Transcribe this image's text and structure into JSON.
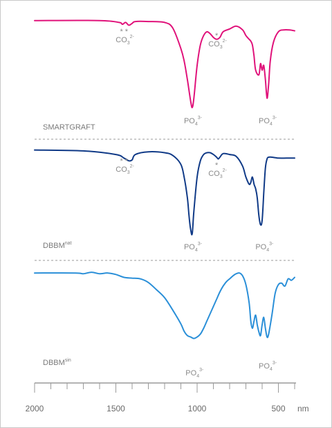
{
  "chart_data": {
    "type": "line",
    "x_unit": "nm",
    "xlim": [
      2000,
      400
    ],
    "x_ticks": [
      "2000",
      "1500",
      "1000",
      "500"
    ],
    "x_unit_label": "nm",
    "grid": false,
    "series": [
      {
        "name": "SMARTGRAFT",
        "color": "#e0127a",
        "x": [
          2000,
          1600,
          1480,
          1460,
          1440,
          1420,
          1400,
          1380,
          1300,
          1200,
          1150,
          1100,
          1080,
          1060,
          1040,
          1030,
          1020,
          1000,
          980,
          960,
          940,
          920,
          900,
          880,
          860,
          840,
          800,
          760,
          720,
          700,
          680,
          670,
          660,
          650,
          640,
          620,
          610,
          600,
          590,
          580,
          570,
          560,
          550,
          530,
          500,
          470,
          430,
          400
        ],
        "y": [
          0.98,
          0.98,
          0.96,
          0.94,
          0.96,
          0.93,
          0.95,
          0.97,
          0.97,
          0.96,
          0.9,
          0.68,
          0.55,
          0.35,
          0.12,
          0.05,
          0.15,
          0.5,
          0.72,
          0.82,
          0.86,
          0.84,
          0.8,
          0.78,
          0.8,
          0.86,
          0.89,
          0.92,
          0.88,
          0.82,
          0.78,
          0.76,
          0.72,
          0.6,
          0.45,
          0.4,
          0.52,
          0.45,
          0.5,
          0.35,
          0.15,
          0.3,
          0.55,
          0.75,
          0.86,
          0.88,
          0.88,
          0.87
        ]
      },
      {
        "name": "DBBM",
        "name_sup": "nat",
        "color": "#103a87",
        "x": [
          2000,
          1700,
          1500,
          1450,
          1420,
          1400,
          1380,
          1300,
          1200,
          1150,
          1100,
          1080,
          1060,
          1050,
          1040,
          1030,
          1020,
          1000,
          980,
          960,
          940,
          920,
          900,
          880,
          870,
          860,
          840,
          800,
          760,
          720,
          700,
          680,
          670,
          660,
          650,
          640,
          630,
          620,
          610,
          600,
          590,
          580,
          570,
          560,
          540,
          500,
          450,
          400
        ],
        "y": [
          0.98,
          0.97,
          0.93,
          0.89,
          0.86,
          0.87,
          0.93,
          0.96,
          0.95,
          0.92,
          0.82,
          0.68,
          0.45,
          0.25,
          0.1,
          0.05,
          0.3,
          0.68,
          0.86,
          0.93,
          0.95,
          0.95,
          0.93,
          0.9,
          0.88,
          0.9,
          0.94,
          0.93,
          0.91,
          0.8,
          0.68,
          0.6,
          0.62,
          0.68,
          0.6,
          0.55,
          0.45,
          0.25,
          0.15,
          0.2,
          0.5,
          0.78,
          0.88,
          0.9,
          0.9,
          0.89,
          0.89,
          0.89
        ]
      },
      {
        "name": "DBBM",
        "name_sup": "sin",
        "color": "#2a8fd8",
        "x": [
          2000,
          1750,
          1700,
          1650,
          1600,
          1550,
          1500,
          1450,
          1400,
          1350,
          1300,
          1250,
          1200,
          1150,
          1100,
          1080,
          1060,
          1040,
          1020,
          1000,
          980,
          960,
          940,
          920,
          900,
          880,
          860,
          840,
          820,
          800,
          780,
          760,
          740,
          720,
          700,
          680,
          670,
          660,
          650,
          640,
          630,
          620,
          610,
          600,
          590,
          580,
          570,
          560,
          540,
          520,
          500,
          480,
          460,
          440,
          420,
          400
        ],
        "y": [
          0.96,
          0.96,
          0.95,
          0.97,
          0.95,
          0.96,
          0.94,
          0.9,
          0.89,
          0.88,
          0.83,
          0.73,
          0.62,
          0.45,
          0.26,
          0.16,
          0.1,
          0.08,
          0.06,
          0.08,
          0.12,
          0.2,
          0.3,
          0.4,
          0.5,
          0.6,
          0.7,
          0.78,
          0.84,
          0.88,
          0.92,
          0.95,
          0.96,
          0.92,
          0.8,
          0.55,
          0.3,
          0.2,
          0.3,
          0.38,
          0.25,
          0.15,
          0.1,
          0.25,
          0.35,
          0.2,
          0.08,
          0.12,
          0.38,
          0.68,
          0.8,
          0.82,
          0.78,
          0.88,
          0.86,
          0.9
        ]
      }
    ],
    "annotations": [
      {
        "panel": 0,
        "text": "CO",
        "sub": "3",
        "sup": "2-",
        "marker": "**",
        "x": 1450
      },
      {
        "panel": 0,
        "text": "CO",
        "sub": "3",
        "sup": "2-",
        "marker": "*",
        "x": 880
      },
      {
        "panel": 0,
        "text": "PO",
        "sub": "4",
        "sup": "3-",
        "marker": "",
        "x": 1030
      },
      {
        "panel": 0,
        "text": "PO",
        "sub": "4",
        "sup": "3-",
        "marker": "",
        "x": 570
      },
      {
        "panel": 1,
        "text": "CO",
        "sub": "3",
        "sup": "2-",
        "marker": "**",
        "x": 1450
      },
      {
        "panel": 1,
        "text": "CO",
        "sub": "3",
        "sup": "2-",
        "marker": "*",
        "x": 880
      },
      {
        "panel": 1,
        "text": "PO",
        "sub": "4",
        "sup": "3-",
        "marker": "",
        "x": 1030
      },
      {
        "panel": 1,
        "text": "PO",
        "sub": "4",
        "sup": "3-",
        "marker": "",
        "x": 590
      },
      {
        "panel": 2,
        "text": "PO",
        "sub": "4",
        "sup": "3-",
        "marker": "",
        "x": 1020
      },
      {
        "panel": 2,
        "text": "PO",
        "sub": "4",
        "sup": "3-",
        "marker": "",
        "x": 570
      }
    ]
  }
}
